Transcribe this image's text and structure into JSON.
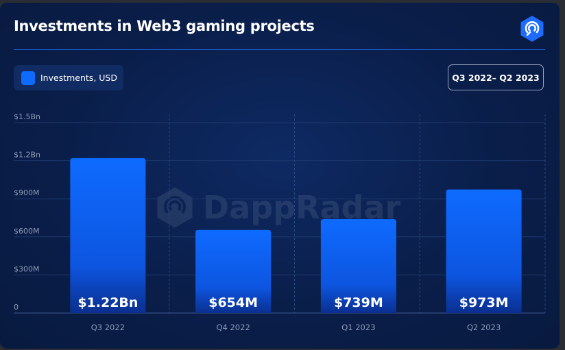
{
  "header": {
    "title": "Investments in Web3 gaming projects",
    "period_label": "Q3 2022– Q2 2023"
  },
  "legend": {
    "label": "Investments, USD",
    "color": "#0e6bff"
  },
  "brand": {
    "logo_icon": "dappradar-logo-icon",
    "watermark_text": "DappRadar",
    "accent": "#1e6bff"
  },
  "chart_data": {
    "type": "bar",
    "title": "Investments in Web3 gaming projects",
    "categories": [
      "Q3 2022",
      "Q4 2022",
      "Q1 2023",
      "Q2 2023"
    ],
    "series": [
      {
        "name": "Investments, USD",
        "values": [
          1220000000,
          654000000,
          739000000,
          973000000
        ]
      }
    ],
    "data_labels": [
      "$1.22Bn",
      "$654M",
      "$739M",
      "$973M"
    ],
    "y_ticks": [
      0,
      300000000,
      600000000,
      900000000,
      1200000000,
      1500000000
    ],
    "y_tick_labels": [
      "0",
      "$300M",
      "$600M",
      "$900M",
      "$1.2Bn",
      "$1.5Bn"
    ],
    "ylim": [
      0,
      1500000000
    ],
    "xlabel": "",
    "ylabel": "",
    "grid": true,
    "legend_position": "top-left",
    "bar_color": "#0e6bff"
  }
}
